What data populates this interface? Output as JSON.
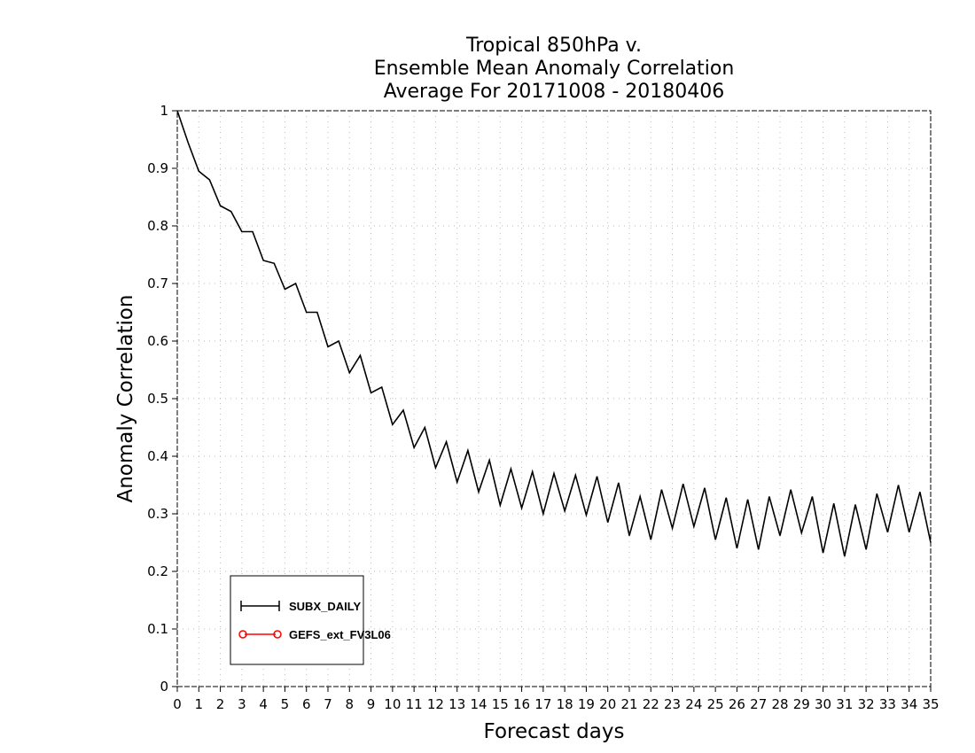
{
  "chart_data": {
    "type": "line",
    "title": [
      "Tropical 850hPa v.",
      "Ensemble Mean Anomaly Correlation",
      "Average For 20171008 - 20180406"
    ],
    "xlabel": "Forecast days",
    "ylabel": "Anomaly Correlation",
    "xlim": [
      0,
      35
    ],
    "ylim": [
      0,
      1
    ],
    "xticks": [
      "0",
      "1",
      "2",
      "3",
      "4",
      "5",
      "6",
      "7",
      "8",
      "9",
      "10",
      "11",
      "12",
      "13",
      "14",
      "15",
      "16",
      "17",
      "18",
      "19",
      "20",
      "21",
      "22",
      "23",
      "24",
      "25",
      "26",
      "27",
      "28",
      "29",
      "30",
      "31",
      "32",
      "33",
      "34",
      "35"
    ],
    "yticks": [
      "0",
      "0.1",
      "0.2",
      "0.3",
      "0.4",
      "0.5",
      "0.6",
      "0.7",
      "0.8",
      "0.9",
      "1"
    ],
    "grid": true,
    "legend_position": "bottom-left",
    "series": [
      {
        "name": "SUBX_DAILY",
        "color": "#000000",
        "marker": "plus",
        "x": [
          0,
          0.5,
          1,
          1.5,
          2,
          2.5,
          3,
          3.5,
          4,
          4.5,
          5,
          5.5,
          6,
          6.5,
          7,
          7.5,
          8,
          8.5,
          9,
          9.5,
          10,
          10.5,
          11,
          11.5,
          12,
          12.5,
          13,
          13.5,
          14,
          14.5,
          15,
          15.5,
          16,
          16.5,
          17,
          17.5,
          18,
          18.5,
          19,
          19.5,
          20,
          20.5,
          21,
          21.5,
          22,
          22.5,
          23,
          23.5,
          24,
          24.5,
          25,
          25.5,
          26,
          26.5,
          27,
          27.5,
          28,
          28.5,
          29,
          29.5,
          30,
          30.5,
          31,
          31.5,
          32,
          32.5,
          33,
          33.5,
          34,
          34.5,
          35
        ],
        "values": [
          1.0,
          0.945,
          0.895,
          0.88,
          0.835,
          0.825,
          0.79,
          0.79,
          0.74,
          0.735,
          0.69,
          0.7,
          0.65,
          0.65,
          0.59,
          0.6,
          0.545,
          0.575,
          0.51,
          0.52,
          0.455,
          0.48,
          0.415,
          0.45,
          0.38,
          0.425,
          0.355,
          0.41,
          0.338,
          0.393,
          0.315,
          0.378,
          0.31,
          0.373,
          0.3,
          0.37,
          0.305,
          0.367,
          0.298,
          0.365,
          0.285,
          0.354,
          0.262,
          0.33,
          0.255,
          0.342,
          0.275,
          0.352,
          0.278,
          0.345,
          0.255,
          0.328,
          0.24,
          0.325,
          0.238,
          0.33,
          0.262,
          0.342,
          0.267,
          0.33,
          0.232,
          0.318,
          0.226,
          0.316,
          0.238,
          0.335,
          0.268,
          0.35,
          0.268,
          0.338,
          0.25
        ]
      },
      {
        "name": "GEFS_ext_FV3L06",
        "color": "#ff0000",
        "marker": "circle",
        "x": [],
        "values": []
      }
    ]
  }
}
